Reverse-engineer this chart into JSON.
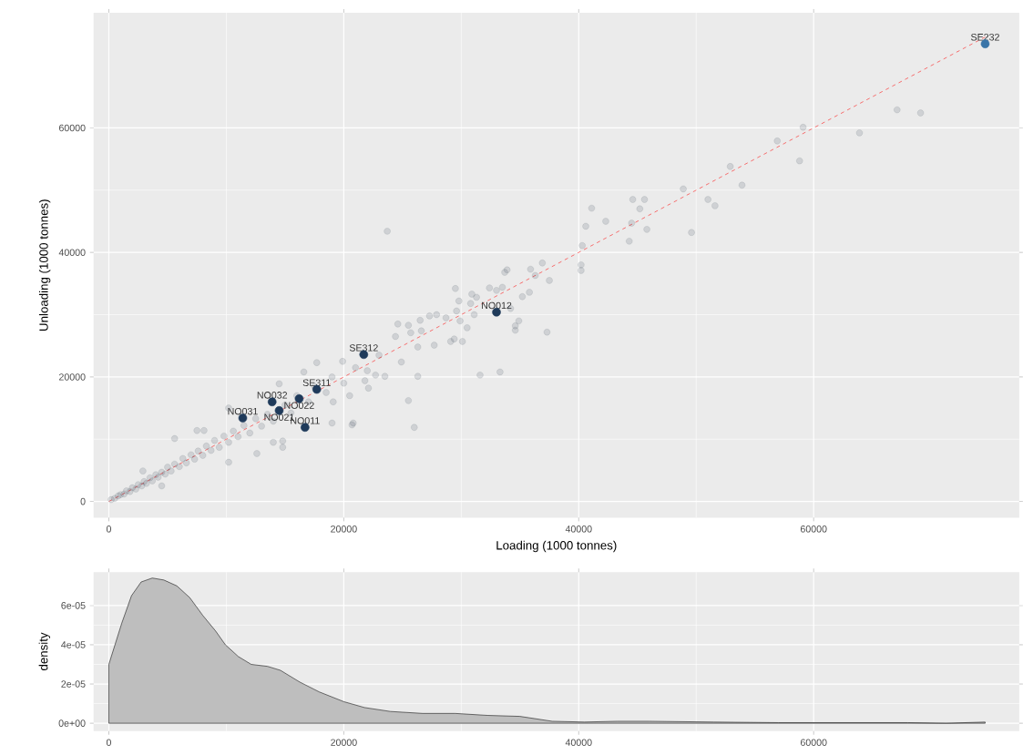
{
  "chart_data": [
    {
      "type": "scatter",
      "xlabel": "Loading (1000 tonnes)",
      "ylabel": "Unloading (1000 tonnes)",
      "xlim": [
        -1300,
        77500
      ],
      "ylim": [
        -2600,
        78500
      ],
      "xticks": [
        0,
        20000,
        40000,
        60000
      ],
      "yticks": [
        0,
        20000,
        40000,
        60000
      ],
      "grid": true,
      "series": [
        {
          "color": "#2c3e50",
          "marker": "circle",
          "x": [
            200,
            500,
            800,
            1000,
            1300,
            1500,
            1800,
            2000,
            2300,
            2500,
            2800,
            3000,
            3200,
            3500,
            3700,
            4000,
            4200,
            4500,
            4800,
            5000,
            5300,
            5600,
            6000,
            6300,
            6600,
            7000,
            7300,
            7600,
            8000,
            8300,
            8700,
            9000,
            9400,
            9800,
            10200,
            10600,
            11000,
            11500,
            12000,
            12500,
            13000,
            13500,
            14000,
            15000,
            15500,
            16000,
            17000,
            17500,
            18500,
            19000,
            20000,
            21000,
            22000,
            23000,
            20700,
            19000,
            21800,
            22100,
            22700,
            20500,
            19100,
            14800,
            14800,
            14000,
            12600,
            10200,
            7500,
            8100,
            5600,
            4500,
            2900,
            10200,
            14500,
            16600,
            17700,
            19900,
            26000,
            20800,
            25500,
            23700,
            40200,
            40200,
            36900,
            37500,
            35900,
            36300,
            33900,
            33700,
            35200,
            35800,
            37300,
            34900,
            34600,
            34600,
            34200,
            32400,
            33000,
            33500,
            33300,
            31600,
            30900,
            31300,
            29500,
            29800,
            30800,
            29600,
            31100,
            29900,
            30500,
            29100,
            29400,
            30100,
            27900,
            28700,
            27300,
            26500,
            24600,
            25500,
            26600,
            27700,
            26300,
            25700,
            24400,
            24900,
            26300,
            23500,
            67100,
            69100,
            63900,
            59100,
            58800,
            56900,
            53900,
            52900,
            51600,
            51000,
            49600,
            48900,
            45800,
            45600,
            45200,
            44600,
            44500,
            44300,
            42300,
            41100,
            40600,
            40300
          ],
          "values": [
            300,
            500,
            900,
            1100,
            1200,
            1700,
            1600,
            2200,
            2000,
            2700,
            2500,
            3200,
            2900,
            3800,
            3300,
            4300,
            3900,
            4700,
            4400,
            5500,
            4900,
            6000,
            5600,
            6900,
            6200,
            7500,
            6800,
            8100,
            7400,
            8900,
            8200,
            9800,
            8700,
            10500,
            9500,
            11300,
            10400,
            12200,
            11000,
            13300,
            12100,
            14000,
            12900,
            15500,
            14200,
            17000,
            16000,
            18500,
            17500,
            20000,
            19000,
            21500,
            21000,
            23500,
            12300,
            12600,
            19400,
            18200,
            20300,
            17000,
            16000,
            9700,
            8700,
            9500,
            7700,
            6300,
            11400,
            11400,
            10100,
            2500,
            4900,
            15000,
            18900,
            20800,
            22300,
            22500,
            11900,
            12600,
            16200,
            43400,
            38000,
            37100,
            38300,
            35500,
            37300,
            36300,
            37200,
            36800,
            32900,
            33600,
            27200,
            29000,
            28200,
            27500,
            31000,
            34300,
            33900,
            34400,
            20800,
            20300,
            33300,
            32800,
            34200,
            32200,
            31800,
            30600,
            30000,
            29000,
            27900,
            25700,
            26100,
            25700,
            30000,
            29500,
            29800,
            29100,
            28500,
            28300,
            27400,
            25100,
            24800,
            27100,
            26500,
            22400,
            20100,
            20100,
            62900,
            62400,
            59200,
            60100,
            54700,
            57900,
            50800,
            53800,
            47500,
            48500,
            43200,
            50200,
            43700,
            48500,
            47000,
            48500,
            44700,
            41800,
            45000,
            47100,
            44200,
            41100
          ]
        },
        {
          "marker": "circle",
          "x": [
            74600,
            33000,
            21700,
            17700,
            16200,
            13900,
            14500,
            11400,
            16700
          ],
          "values": [
            73500,
            30400,
            23600,
            18000,
            16500,
            16000,
            14600,
            13400,
            11900
          ],
          "colors": [
            "#3a75a8",
            "#1f3a5a",
            "#1f3a5a",
            "#1f3a5a",
            "#1f3a5a",
            "#1f3a5a",
            "#1f3a5a",
            "#1f3a5a",
            "#1f3a5a"
          ]
        },
        {
          "type": "line",
          "marker": "none",
          "color": "#ff0000",
          "line_style": "dashed",
          "x": [
            0,
            74600
          ],
          "values": [
            0,
            74600
          ]
        }
      ],
      "annotations": [
        {
          "text": "SE232",
          "x": 74600,
          "y": 73500
        },
        {
          "text": "NO012",
          "x": 33000,
          "y": 30400
        },
        {
          "text": "SE312",
          "x": 21700,
          "y": 23600
        },
        {
          "text": "SE311",
          "x": 17700,
          "y": 18000
        },
        {
          "text": "NO022",
          "x": 16200,
          "y": 16500
        },
        {
          "text": "NO032",
          "x": 13900,
          "y": 16000
        },
        {
          "text": "NO021",
          "x": 14500,
          "y": 14600
        },
        {
          "text": "NO031",
          "x": 11400,
          "y": 13400
        },
        {
          "text": "NO011",
          "x": 16700,
          "y": 11900
        }
      ]
    },
    {
      "type": "area",
      "ylabel": "density",
      "xlim": [
        -1300,
        77500
      ],
      "ylim": [
        -4e-06,
        7.7e-05
      ],
      "xticks": [
        0,
        20000,
        40000,
        60000
      ],
      "yticks": [
        {
          "value": 0,
          "label": "0e+00"
        },
        {
          "value": 2e-05,
          "label": "2e-05"
        },
        {
          "value": 4e-05,
          "label": "4e-05"
        },
        {
          "value": 6e-05,
          "label": "6e-05"
        }
      ],
      "grid": true,
      "series": [
        {
          "color": "#bebebe",
          "x": [
            0,
            1100,
            1930,
            2750,
            3700,
            4680,
            5790,
            6890,
            7990,
            9090,
            9920,
            11020,
            12120,
            13500,
            14600,
            16250,
            17900,
            20000,
            21760,
            23970,
            26720,
            29480,
            32230,
            34990,
            37740,
            40500,
            43250,
            46000,
            51500,
            57000,
            62500,
            68000,
            71300,
            74600
          ],
          "values": [
            3e-05,
            5.1e-05,
            6.5e-05,
            7.2e-05,
            7.4e-05,
            7.3e-05,
            7e-05,
            6.4e-05,
            5.5e-05,
            4.7e-05,
            4e-05,
            3.4e-05,
            3e-05,
            2.9e-05,
            2.7e-05,
            2.1e-05,
            1.6e-05,
            1.1e-05,
            8e-06,
            6e-06,
            5e-06,
            5e-06,
            4e-06,
            3.5e-06,
            1e-06,
            6e-07,
            1e-06,
            1e-06,
            6e-07,
            3e-07,
            3e-07,
            3e-07,
            0,
            6e-07
          ]
        }
      ]
    }
  ]
}
